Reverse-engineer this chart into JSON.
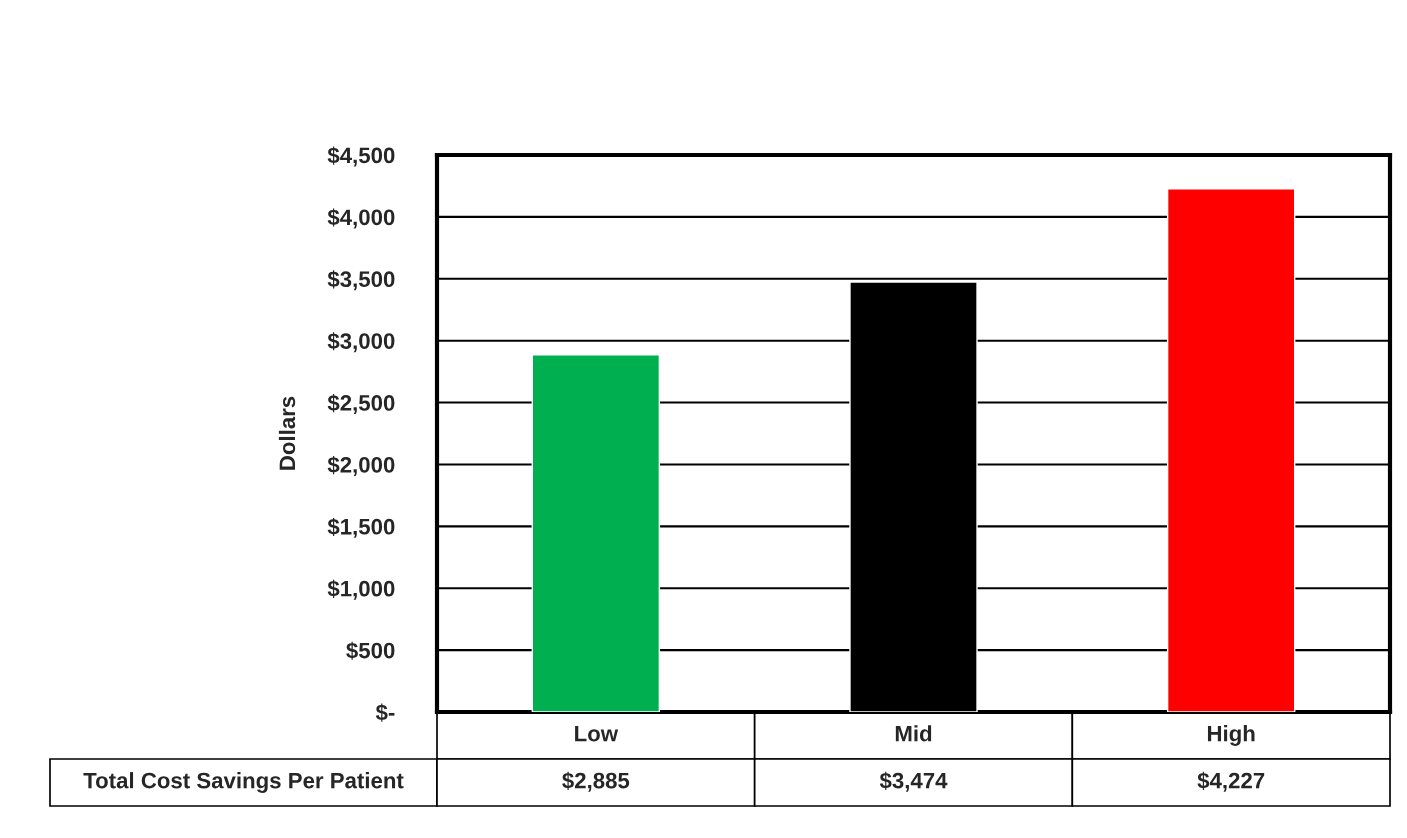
{
  "chart_data": {
    "type": "bar",
    "ylabel": "Dollars",
    "categories": [
      "Low",
      "Mid",
      "High"
    ],
    "series": [
      {
        "name": "Total Cost Savings Per Patient",
        "colors": [
          "#00b050",
          "#000000",
          "#ff0000"
        ],
        "values": [
          2885,
          3474,
          4227
        ],
        "value_labels": [
          "$2,885",
          "$3,474",
          "$4,227"
        ]
      }
    ],
    "ylim": [
      0,
      4500
    ],
    "yticks": [
      {
        "value": 0,
        "label": "$-"
      },
      {
        "value": 500,
        "label": "$500"
      },
      {
        "value": 1000,
        "label": "$1,000"
      },
      {
        "value": 1500,
        "label": "$1,500"
      },
      {
        "value": 2000,
        "label": "$2,000"
      },
      {
        "value": 2500,
        "label": "$2,500"
      },
      {
        "value": 3000,
        "label": "$3,000"
      },
      {
        "value": 3500,
        "label": "$3,500"
      },
      {
        "value": 4000,
        "label": "$4,000"
      },
      {
        "value": 4500,
        "label": "$4,500"
      }
    ],
    "grid": "y",
    "legend": false
  }
}
